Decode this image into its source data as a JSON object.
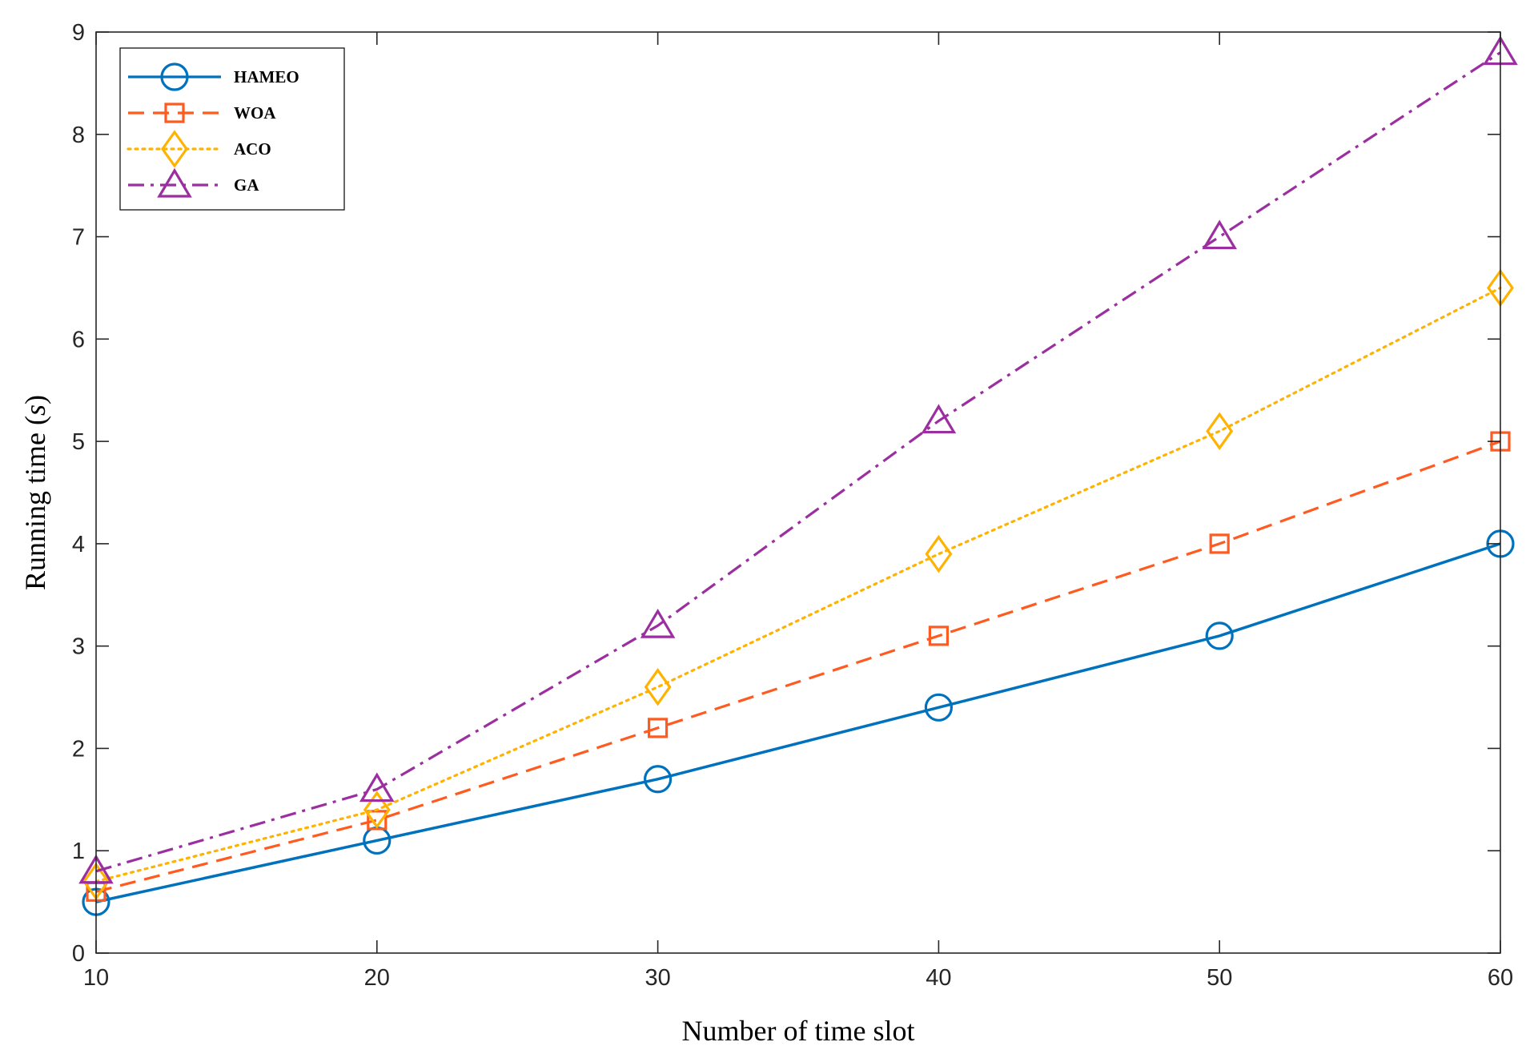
{
  "chart_data": {
    "type": "line",
    "title": "",
    "xlabel": "Number of time slot",
    "ylabel_main": "Running time (",
    "ylabel_unit": "s",
    "ylabel_close": ")",
    "x": [
      10,
      20,
      30,
      40,
      50,
      60
    ],
    "xlim": [
      10,
      60
    ],
    "ylim": [
      0,
      9
    ],
    "xticks": [
      "10",
      "20",
      "30",
      "40",
      "50",
      "60"
    ],
    "yticks": [
      "0",
      "1",
      "2",
      "3",
      "4",
      "5",
      "6",
      "7",
      "8",
      "9"
    ],
    "grid": false,
    "legend_position": "top-left",
    "series": [
      {
        "name": "HAMEO",
        "values": [
          0.5,
          1.1,
          1.7,
          2.4,
          3.1,
          4.0
        ],
        "color": "#0072BD",
        "marker": "circle",
        "line": "solid"
      },
      {
        "name": "WOA",
        "values": [
          0.6,
          1.3,
          2.2,
          3.1,
          4.0,
          5.0
        ],
        "color": "#FF5A1F",
        "marker": "square",
        "line": "dashed"
      },
      {
        "name": "ACO",
        "values": [
          0.7,
          1.4,
          2.6,
          3.9,
          5.1,
          6.5
        ],
        "color": "#FFB300",
        "marker": "diamond",
        "line": "dotted"
      },
      {
        "name": "GA",
        "values": [
          0.8,
          1.6,
          3.2,
          5.2,
          7.0,
          8.8
        ],
        "color": "#9B2FA0",
        "marker": "triangle",
        "line": "dashdot"
      }
    ]
  }
}
